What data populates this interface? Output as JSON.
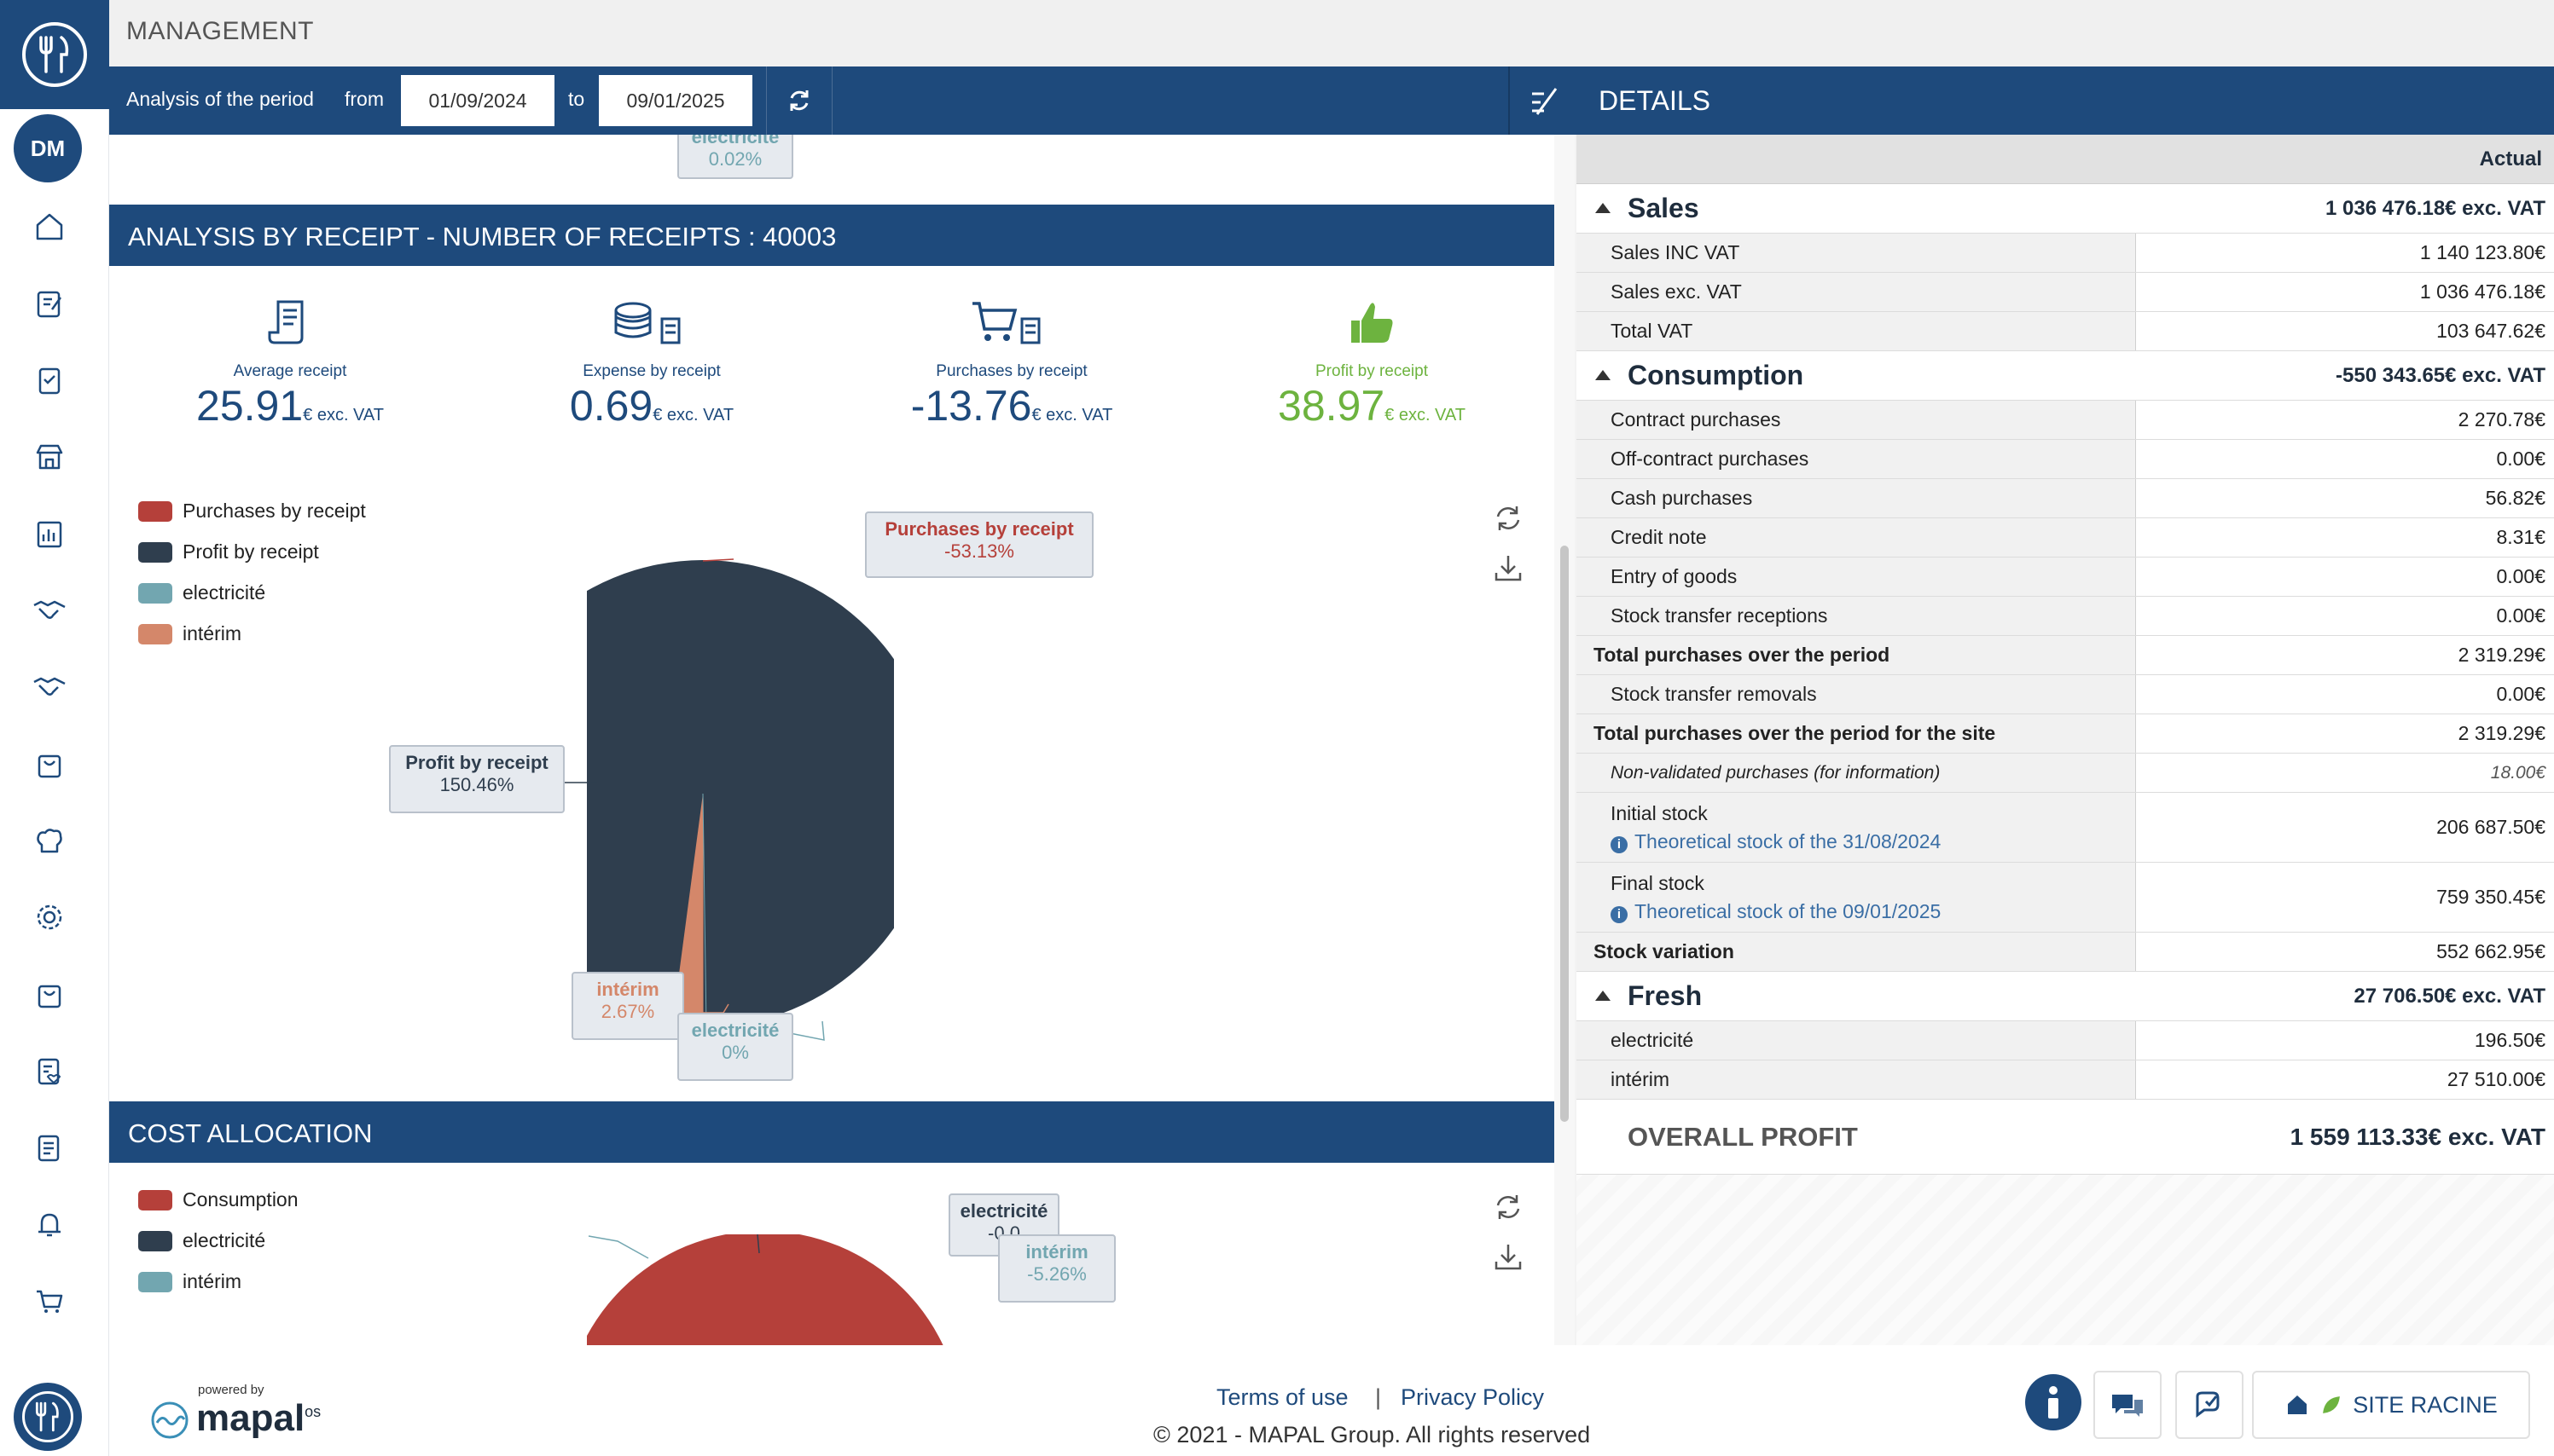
{
  "header": {
    "title": "MANAGEMENT",
    "period_label": "Analysis of the period",
    "from_label": "from",
    "from_value": "01/09/2024",
    "to_label": "to",
    "to_value": "09/01/2025",
    "details_title": "DETAILS"
  },
  "sidebar": {
    "avatar_initials": "DM",
    "icons": [
      "home-icon",
      "edit-document-icon",
      "clipboard-check-icon",
      "store-icon",
      "report-icon",
      "handshake-icon",
      "handshake-icon",
      "bag-icon",
      "chef-hat-icon",
      "gear-icon",
      "bag-icon",
      "checklist-heart-icon",
      "invoice-icon",
      "bell-icon",
      "cart-icon"
    ]
  },
  "receipt_section": {
    "title": "ANALYSIS BY RECEIPT - NUMBER OF RECEIPTS : 40003",
    "top_tooltip": {
      "label": "electricité",
      "value": "0.02%"
    },
    "kpis": [
      {
        "label": "Average receipt",
        "value": "25.91",
        "unit": "€ exc. VAT"
      },
      {
        "label": "Expense by receipt",
        "value": "0.69",
        "unit": "€ exc. VAT"
      },
      {
        "label": "Purchases by receipt",
        "value": "-13.76",
        "unit": "€ exc. VAT"
      },
      {
        "label": "Profit by receipt",
        "value": "38.97",
        "unit": "€ exc. VAT"
      }
    ],
    "legend": [
      {
        "label": "Purchases by receipt",
        "color": "#b5403a"
      },
      {
        "label": "Profit by receipt",
        "color": "#2f3e4e"
      },
      {
        "label": "electricité",
        "color": "#72a6b0"
      },
      {
        "label": "intérim",
        "color": "#d4876a"
      }
    ],
    "tooltips": {
      "purchases": {
        "label": "Purchases by receipt",
        "value": "-53.13%"
      },
      "profit": {
        "label": "Profit by receipt",
        "value": "150.46%"
      },
      "interim": {
        "label": "intérim",
        "value": "2.67%"
      },
      "electricite": {
        "label": "electricité",
        "value": "0%"
      }
    }
  },
  "cost_section": {
    "title": "COST ALLOCATION",
    "legend": [
      {
        "label": "Consumption",
        "color": "#b5403a"
      },
      {
        "label": "electricité",
        "color": "#2f3e4e"
      },
      {
        "label": "intérim",
        "color": "#72a6b0"
      }
    ],
    "tooltips": {
      "electricite": {
        "label": "electricité",
        "value": "-0.0"
      },
      "interim": {
        "label": "intérim",
        "value": "-5.26%"
      }
    }
  },
  "chart_data": [
    {
      "type": "pie",
      "title": "",
      "categories": [
        "Purchases by receipt",
        "Profit by receipt",
        "electricité",
        "intérim"
      ],
      "values": [
        -53.13,
        150.46,
        0,
        2.67
      ],
      "unit": "%"
    },
    {
      "type": "pie",
      "title": "",
      "categories": [
        "Consumption",
        "electricité",
        "intérim"
      ],
      "values": [
        null,
        null,
        -5.26
      ],
      "unit": "%"
    }
  ],
  "details": {
    "column_header": "Actual",
    "sales": {
      "name": "Sales",
      "total": "1 036 476.18€ exc. VAT",
      "rows": [
        {
          "label": "Sales INC VAT",
          "value": "1 140 123.80€"
        },
        {
          "label": "Sales exc. VAT",
          "value": "1 036 476.18€"
        },
        {
          "label": "Total VAT",
          "value": "103 647.62€"
        }
      ]
    },
    "consumption": {
      "name": "Consumption",
      "total": "-550 343.65€ exc. VAT",
      "rows": [
        {
          "label": "Contract purchases",
          "value": "2 270.78€"
        },
        {
          "label": "Off-contract purchases",
          "value": "0.00€"
        },
        {
          "label": "Cash purchases",
          "value": "56.82€"
        },
        {
          "label": "Credit note",
          "value": "8.31€"
        },
        {
          "label": "Entry of goods",
          "value": "0.00€"
        },
        {
          "label": "Stock transfer receptions",
          "value": "0.00€"
        }
      ],
      "total_purchases": {
        "label": "Total purchases over the period",
        "value": "2 319.29€"
      },
      "stock_removals": {
        "label": "Stock transfer removals",
        "value": "0.00€"
      },
      "total_site": {
        "label": "Total purchases over the period for the site",
        "value": "2 319.29€"
      },
      "non_validated": {
        "label": "Non-validated purchases (for information)",
        "value": "18.00€"
      },
      "initial_stock": {
        "label": "Initial stock",
        "sub": "Theoretical stock of the 31/08/2024",
        "value": "206 687.50€"
      },
      "final_stock": {
        "label": "Final stock",
        "sub": "Theoretical stock of the 09/01/2025",
        "value": "759 350.45€"
      },
      "stock_variation": {
        "label": "Stock variation",
        "value": "552 662.95€"
      }
    },
    "fresh": {
      "name": "Fresh",
      "total": "27 706.50€ exc. VAT",
      "rows": [
        {
          "label": "electricité",
          "value": "196.50€"
        },
        {
          "label": "intérim",
          "value": "27 510.00€"
        }
      ]
    },
    "overall_label": "OVERALL PROFIT",
    "overall_value": "1 559 113.33€ exc. VAT"
  },
  "footer": {
    "powered_by": "powered by",
    "brand": "mapal",
    "brand_suffix": "os",
    "terms": "Terms of use",
    "separator": "|",
    "privacy": "Privacy Policy",
    "copyright": "© 2021 - MAPAL Group. All rights reserved",
    "site_button": "SITE RACINE"
  }
}
